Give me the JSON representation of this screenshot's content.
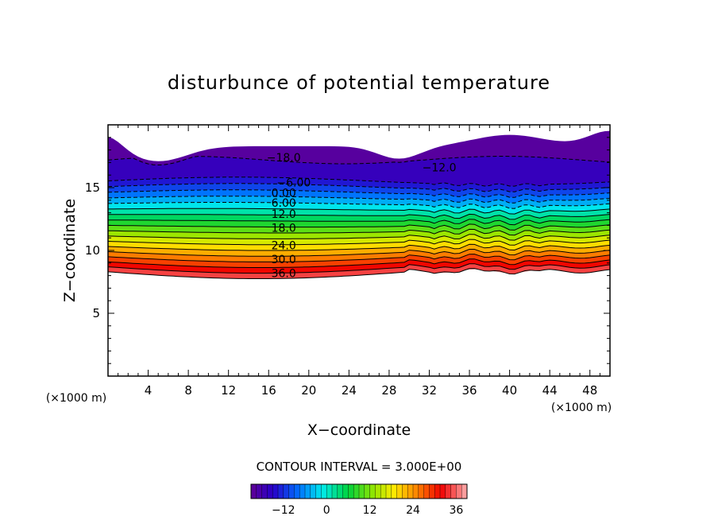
{
  "chart_data": {
    "type": "contour",
    "title": "disturbunce of potential temperature",
    "xlabel": "X−coordinate",
    "ylabel": "Z−coordinate",
    "x_unit_left": "(×1000 m)",
    "x_unit_right": "(×1000 m)",
    "xlim": [
      0,
      50
    ],
    "ylim": [
      0,
      20
    ],
    "x_ticks": [
      "4",
      "8",
      "12",
      "16",
      "20",
      "24",
      "28",
      "32",
      "36",
      "40",
      "44",
      "48"
    ],
    "y_ticks": [
      "5",
      "10",
      "15"
    ],
    "contour_interval_text": "CONTOUR INTERVAL = 3.000E+00",
    "contour_interval": 3.0,
    "level_range": [
      -18,
      36
    ],
    "contour_labels": [
      {
        "text": "−18.0",
        "x": 17.5,
        "z": 17.4
      },
      {
        "text": "−12.0",
        "x": 33.0,
        "z": 16.6
      },
      {
        "text": "−6.00",
        "x": 18.5,
        "z": 15.4
      },
      {
        "text": "0.00",
        "x": 17.5,
        "z": 14.6
      },
      {
        "text": "6.00",
        "x": 17.5,
        "z": 13.8
      },
      {
        "text": "12.0",
        "x": 17.5,
        "z": 12.9
      },
      {
        "text": "18.0",
        "x": 17.5,
        "z": 11.8
      },
      {
        "text": "24.0",
        "x": 17.5,
        "z": 10.4
      },
      {
        "text": "30.0",
        "x": 17.5,
        "z": 9.3
      },
      {
        "text": "36.0",
        "x": 17.5,
        "z": 8.2
      }
    ],
    "colorbar_ticks": [
      "−12",
      "0",
      "12",
      "24",
      "36"
    ],
    "colorbar_tick_values": [
      -12,
      0,
      12,
      24,
      36
    ],
    "colorbar_range": [
      -21,
      39
    ]
  }
}
